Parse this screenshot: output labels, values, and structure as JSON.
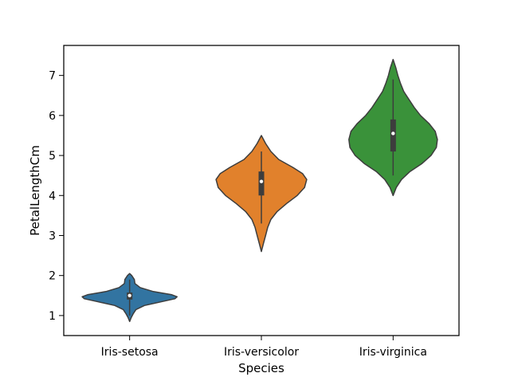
{
  "chart_data": {
    "type": "violin",
    "xlabel": "Species",
    "ylabel": "PetalLengthCm",
    "categories": [
      "Iris-setosa",
      "Iris-versicolor",
      "Iris-virginica"
    ],
    "ylim": [
      0.5,
      7.75
    ],
    "yticks": [
      1,
      2,
      3,
      4,
      5,
      6,
      7
    ],
    "grid": false,
    "colors": [
      "#3274a1",
      "#e1812c",
      "#3a923a"
    ],
    "violins": [
      {
        "category": "Iris-setosa",
        "min": 1.0,
        "q1": 1.4,
        "median": 1.5,
        "q3": 1.575,
        "max": 1.9,
        "kde_extent": [
          0.85,
          2.05
        ],
        "density_profile": [
          [
            0.85,
            0.0
          ],
          [
            0.95,
            0.03
          ],
          [
            1.05,
            0.07
          ],
          [
            1.15,
            0.12
          ],
          [
            1.25,
            0.28
          ],
          [
            1.35,
            0.62
          ],
          [
            1.42,
            0.86
          ],
          [
            1.47,
            0.9
          ],
          [
            1.52,
            0.8
          ],
          [
            1.6,
            0.45
          ],
          [
            1.7,
            0.2
          ],
          [
            1.8,
            0.1
          ],
          [
            1.9,
            0.09
          ],
          [
            2.0,
            0.04
          ],
          [
            2.05,
            0.0
          ]
        ]
      },
      {
        "category": "Iris-versicolor",
        "min": 3.3,
        "q1": 4.0,
        "median": 4.35,
        "q3": 4.6,
        "max": 5.1,
        "kde_extent": [
          2.6,
          5.5
        ],
        "density_profile": [
          [
            2.6,
            0.0
          ],
          [
            2.8,
            0.04
          ],
          [
            3.0,
            0.08
          ],
          [
            3.2,
            0.12
          ],
          [
            3.4,
            0.18
          ],
          [
            3.6,
            0.3
          ],
          [
            3.8,
            0.48
          ],
          [
            4.0,
            0.68
          ],
          [
            4.2,
            0.82
          ],
          [
            4.4,
            0.86
          ],
          [
            4.55,
            0.78
          ],
          [
            4.7,
            0.6
          ],
          [
            4.9,
            0.33
          ],
          [
            5.1,
            0.18
          ],
          [
            5.3,
            0.08
          ],
          [
            5.5,
            0.0
          ]
        ]
      },
      {
        "category": "Iris-virginica",
        "min": 4.5,
        "q1": 5.1,
        "median": 5.55,
        "q3": 5.9,
        "max": 6.9,
        "kde_extent": [
          4.0,
          7.4
        ],
        "density_profile": [
          [
            4.0,
            0.0
          ],
          [
            4.2,
            0.06
          ],
          [
            4.4,
            0.16
          ],
          [
            4.6,
            0.32
          ],
          [
            4.8,
            0.55
          ],
          [
            5.0,
            0.72
          ],
          [
            5.2,
            0.82
          ],
          [
            5.4,
            0.84
          ],
          [
            5.6,
            0.8
          ],
          [
            5.8,
            0.68
          ],
          [
            6.0,
            0.52
          ],
          [
            6.2,
            0.4
          ],
          [
            6.4,
            0.3
          ],
          [
            6.6,
            0.2
          ],
          [
            6.8,
            0.14
          ],
          [
            7.0,
            0.09
          ],
          [
            7.2,
            0.05
          ],
          [
            7.4,
            0.0
          ]
        ]
      }
    ]
  }
}
